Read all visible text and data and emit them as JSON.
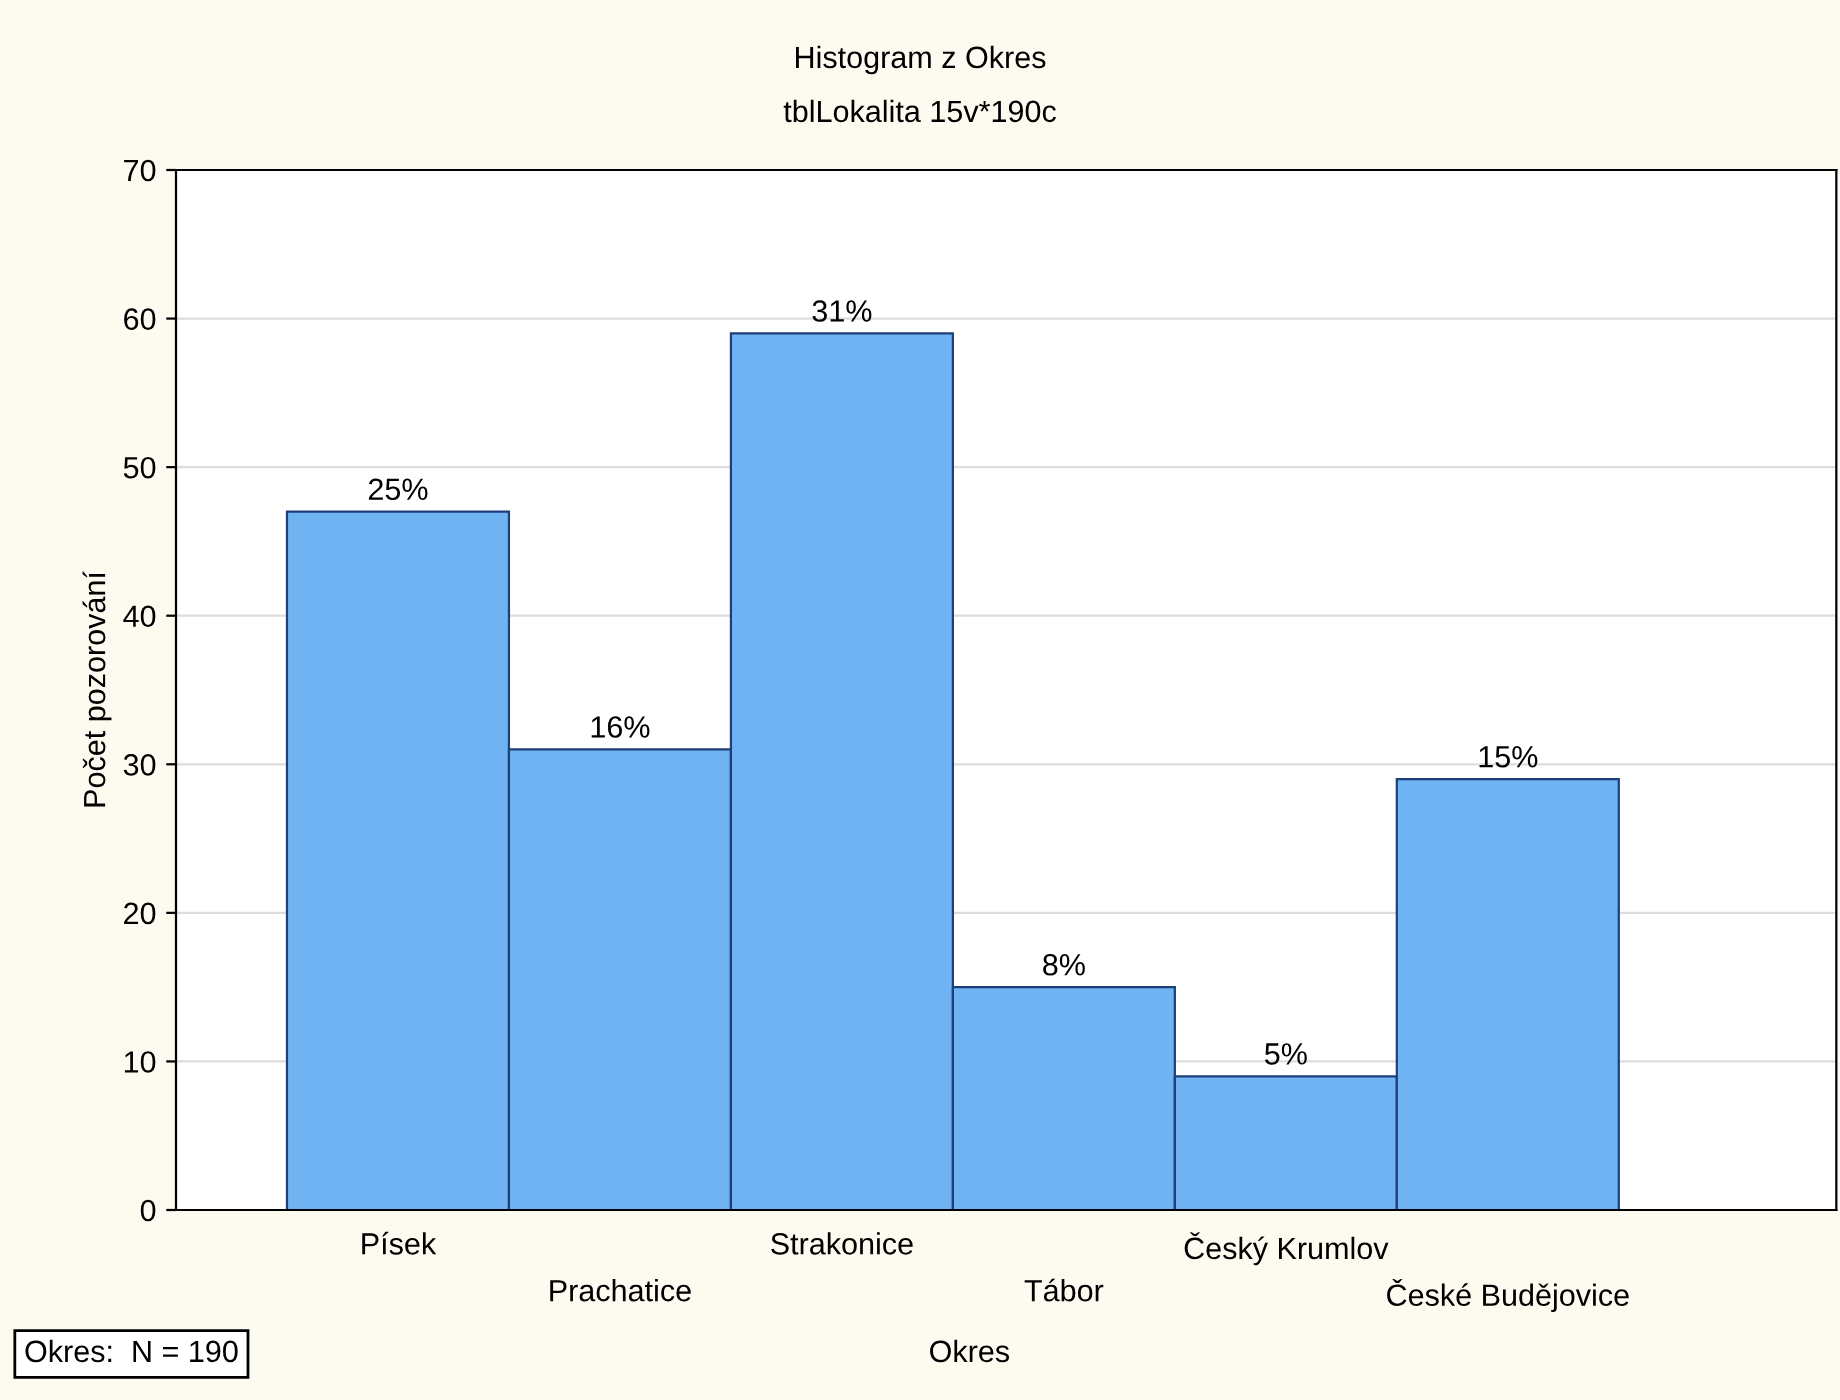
{
  "chart_data": {
    "type": "bar",
    "title": "Histogram z Okres",
    "subtitle": "tblLokalita 15v*190c",
    "xlabel": "Okres",
    "ylabel": "Počet pozorování",
    "categories": [
      "Písek",
      "Prachatice",
      "Strakonice",
      "Tábor",
      "Český Krumlov",
      "České Budějovice"
    ],
    "values": [
      47,
      31,
      59,
      15,
      9,
      29
    ],
    "color": "#6fb3f2",
    "ylim": [
      0,
      70
    ],
    "yticks": [
      0,
      10,
      20,
      30,
      40,
      50,
      60,
      70
    ],
    "grid": "y",
    "annotations": [
      {
        "text": "25%",
        "x": "Písek",
        "y": 47
      },
      {
        "text": "16%",
        "x": "Prachatice",
        "y": 31
      },
      {
        "text": "31%",
        "x": "Strakonice",
        "y": 59
      },
      {
        "text": "8%",
        "x": "Tábor",
        "y": 15
      },
      {
        "text": "5%",
        "x": "Český Krumlov",
        "y": 9
      },
      {
        "text": "15%",
        "x": "České Budějovice",
        "y": 29
      },
      "Okres:  N = 190"
    ]
  }
}
